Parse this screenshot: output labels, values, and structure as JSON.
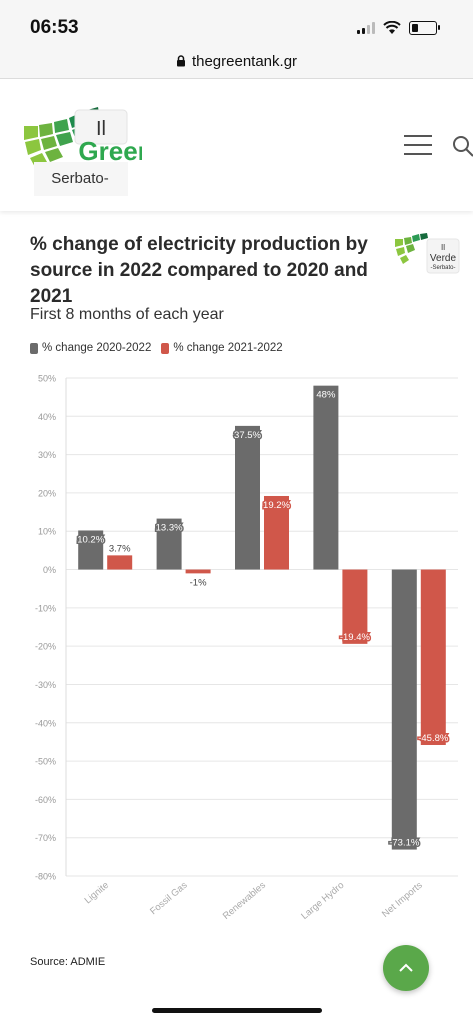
{
  "status_bar": {
    "time": "06:53"
  },
  "browser": {
    "url": "thegreentank.gr"
  },
  "header": {
    "logo_text": "Green",
    "logo_badge": "Il",
    "logo_badge_sub": "Serbato-"
  },
  "article": {
    "title": "% change of electricity production by source in 2022 compared to 2020 and 2021",
    "subtitle": "First 8 months of each year",
    "small_logo": {
      "badge": "Il",
      "word": "Verde",
      "sub": "-Serbato-"
    },
    "source": "Source: ADMIE"
  },
  "colors": {
    "series1": "#6b6b6b",
    "series2": "#d0574a",
    "brand_green": "#5aa84a"
  },
  "chart_data": {
    "type": "bar",
    "categories": [
      "Lignite",
      "Fossil Gas",
      "Renewables",
      "Large Hydro",
      "Net Imports"
    ],
    "series": [
      {
        "name": "% change 2020-2022",
        "values": [
          10.2,
          13.3,
          37.5,
          48,
          -73.1
        ],
        "labels": [
          "10.2%",
          "13.3%",
          "37.5%",
          "48%",
          "-73.1%"
        ]
      },
      {
        "name": "% change 2021-2022",
        "values": [
          3.7,
          -1,
          19.2,
          -19.4,
          -45.8
        ],
        "labels": [
          "3.7%",
          "-1%",
          "19.2%",
          "-19.4%",
          "-45.8%"
        ]
      }
    ],
    "ylim": [
      -80,
      50
    ],
    "yticks": [
      50,
      40,
      30,
      20,
      10,
      0,
      -10,
      -20,
      -30,
      -40,
      -50,
      -60,
      -70,
      -80
    ],
    "ytick_labels": [
      "50%",
      "40%",
      "30%",
      "20%",
      "10%",
      "0%",
      "-10%",
      "-20%",
      "-30%",
      "-40%",
      "-50%",
      "-60%",
      "-70%",
      "-80%"
    ],
    "grid": true,
    "legend_position": "top-left"
  }
}
